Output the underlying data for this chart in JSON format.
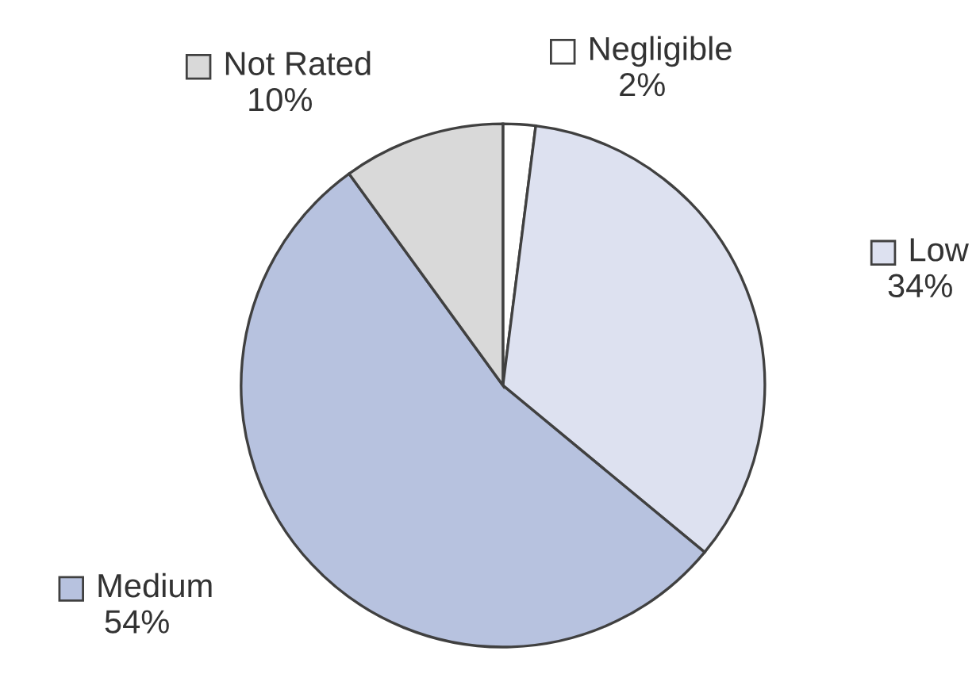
{
  "chart_data": {
    "type": "pie",
    "categories": [
      "Negligible",
      "Low",
      "Medium",
      "Not Rated"
    ],
    "values": [
      2,
      34,
      54,
      10
    ],
    "value_labels": [
      "2%",
      "34%",
      "54%",
      "10%"
    ],
    "colors": [
      "#ffffff",
      "#dde1f0",
      "#b7c2df",
      "#d9d9d9"
    ],
    "legend": "right"
  }
}
